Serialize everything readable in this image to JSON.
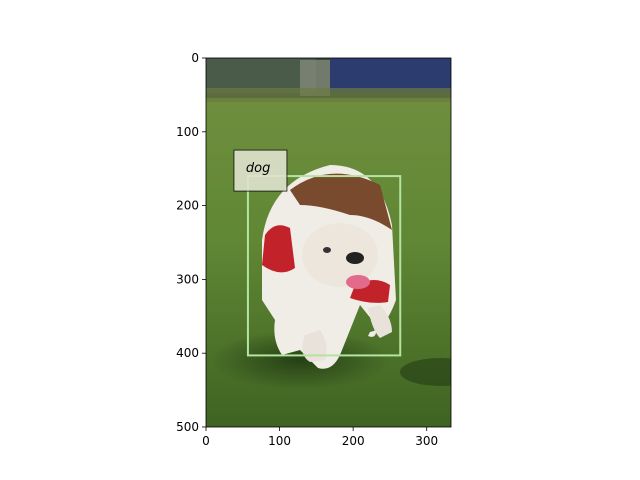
{
  "image": {
    "description_free": true,
    "extent": {
      "x": [
        0,
        333
      ],
      "y": [
        0,
        500
      ]
    }
  },
  "axes": {
    "x_ticks": [
      {
        "value": 0,
        "label": "0"
      },
      {
        "value": 100,
        "label": "100"
      },
      {
        "value": 200,
        "label": "200"
      },
      {
        "value": 300,
        "label": "300"
      }
    ],
    "y_ticks": [
      {
        "value": 0,
        "label": "0"
      },
      {
        "value": 100,
        "label": "100"
      },
      {
        "value": 200,
        "label": "200"
      },
      {
        "value": 300,
        "label": "300"
      },
      {
        "value": 400,
        "label": "400"
      },
      {
        "value": 500,
        "label": "500"
      }
    ]
  },
  "annotation": {
    "label": "dog",
    "bbox_data": {
      "x0": 57,
      "y0": 160,
      "x1": 264,
      "y1": 403
    },
    "box_color": "#b5e3a0",
    "label_bg": "#dfe3cf"
  }
}
